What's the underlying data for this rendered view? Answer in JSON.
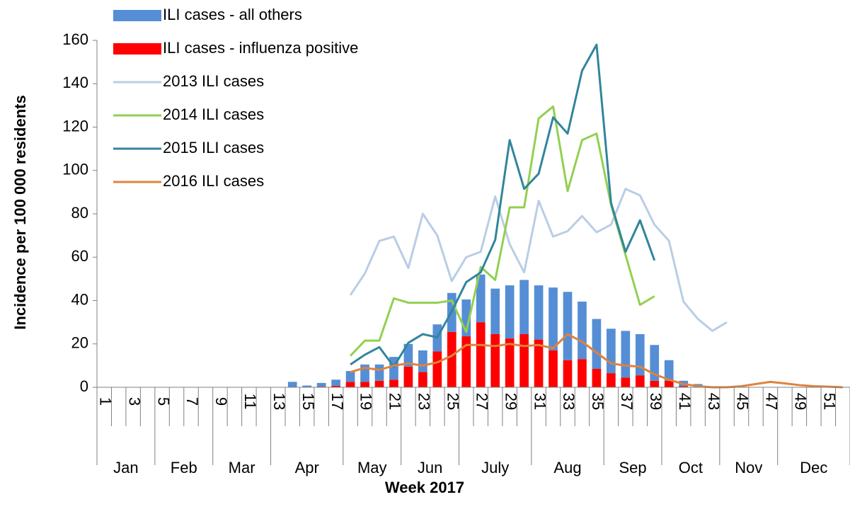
{
  "chart_data": {
    "type": "combo",
    "ylabel": "Incidence per 100 000 residents",
    "xlabel": "Week 2017",
    "categories": [
      "1",
      null,
      "3",
      null,
      "5",
      null,
      "7",
      null,
      "9",
      null,
      "11",
      null,
      "13",
      null,
      "15",
      null,
      "17",
      null,
      "19",
      null,
      "21",
      null,
      "23",
      null,
      "25",
      null,
      "27",
      null,
      "29",
      null,
      "31",
      null,
      "33",
      null,
      "35",
      null,
      "37",
      null,
      "39",
      null,
      "41",
      null,
      "43",
      null,
      "45",
      null,
      "47",
      null,
      "49",
      null,
      "51",
      null
    ],
    "months": [
      {
        "label": "Jan",
        "weeks": 4
      },
      {
        "label": "Feb",
        "weeks": 4
      },
      {
        "label": "Mar",
        "weeks": 4
      },
      {
        "label": "Apr",
        "weeks": 5
      },
      {
        "label": "May",
        "weeks": 4
      },
      {
        "label": "Jun",
        "weeks": 4
      },
      {
        "label": "July",
        "weeks": 5
      },
      {
        "label": "Aug",
        "weeks": 5
      },
      {
        "label": "Sep",
        "weeks": 4
      },
      {
        "label": "Oct",
        "weeks": 4
      },
      {
        "label": "Nov",
        "weeks": 4
      },
      {
        "label": "Dec",
        "weeks": 5
      }
    ],
    "series": [
      {
        "name": "ILI cases - all others",
        "type": "bar",
        "color": "#558ed5",
        "values": [
          null,
          null,
          null,
          null,
          null,
          null,
          null,
          null,
          null,
          null,
          null,
          null,
          null,
          2.5,
          0.8,
          1.7,
          2.8,
          5,
          8,
          7.5,
          10.5,
          10.5,
          10,
          12.5,
          18,
          17,
          22,
          21,
          24.5,
          25,
          25,
          29,
          31.5,
          26.5,
          23,
          20.5,
          21.5,
          19,
          16.5,
          9.5,
          2.5,
          1.5,
          null,
          null,
          null,
          null,
          null,
          null,
          null,
          null,
          null,
          null
        ]
      },
      {
        "name": "ILI cases - influenza positive",
        "type": "bar",
        "color": "#ff0000",
        "values": [
          null,
          null,
          null,
          null,
          null,
          null,
          null,
          null,
          null,
          null,
          null,
          null,
          null,
          0,
          0,
          0.3,
          0.7,
          2.5,
          2.5,
          3,
          3.5,
          9.5,
          7,
          16.5,
          25.5,
          23.5,
          30,
          24.5,
          22.5,
          24.5,
          22,
          17,
          12.5,
          13,
          8.5,
          6.5,
          4.5,
          5.5,
          3,
          3,
          0.5,
          0,
          null,
          null,
          null,
          null,
          null,
          null,
          null,
          null,
          null,
          null
        ]
      },
      {
        "name": "2013 ILI cases",
        "type": "line",
        "color": "#b9cde5",
        "values": [
          null,
          null,
          null,
          null,
          null,
          null,
          null,
          null,
          null,
          null,
          null,
          null,
          null,
          null,
          null,
          null,
          null,
          42.5,
          52.5,
          67.5,
          69.5,
          55,
          80,
          70,
          49,
          60,
          62.5,
          88,
          66,
          53,
          86,
          69.5,
          72,
          79,
          71.5,
          75,
          91.5,
          88.5,
          75,
          67.5,
          39.5,
          31.5,
          26,
          30,
          null,
          null,
          null,
          null,
          null,
          null,
          null,
          null
        ]
      },
      {
        "name": "2014 ILI cases",
        "type": "line",
        "color": "#92d050",
        "values": [
          null,
          null,
          null,
          null,
          null,
          null,
          null,
          null,
          null,
          null,
          null,
          null,
          null,
          null,
          null,
          null,
          null,
          14.5,
          21.5,
          21.5,
          41,
          39,
          39,
          39,
          40,
          25.5,
          55.5,
          49.5,
          83,
          83,
          124,
          129.5,
          90.5,
          114,
          117,
          84,
          61,
          38,
          42,
          null,
          null,
          null,
          null,
          null,
          null,
          null,
          null,
          null,
          null,
          null,
          null,
          null
        ]
      },
      {
        "name": "2015 ILI cases",
        "type": "line",
        "color": "#31859c",
        "values": [
          null,
          null,
          null,
          null,
          null,
          null,
          null,
          null,
          null,
          null,
          null,
          null,
          null,
          null,
          null,
          null,
          null,
          10.5,
          15,
          18.5,
          9.5,
          20.5,
          24.5,
          23,
          35,
          48.5,
          53,
          68,
          114,
          91.5,
          98.5,
          124.5,
          117,
          146,
          158,
          85,
          62.5,
          77,
          58.5,
          null,
          null,
          null,
          null,
          null,
          null,
          null,
          null,
          null,
          null,
          null,
          null,
          null
        ]
      },
      {
        "name": "2016 ILI cases",
        "type": "line",
        "color": "#e0823c",
        "values": [
          null,
          null,
          null,
          null,
          null,
          null,
          null,
          null,
          null,
          null,
          null,
          null,
          null,
          null,
          null,
          null,
          null,
          7,
          9,
          8,
          10,
          11,
          10,
          11.5,
          14.5,
          19.5,
          19.5,
          19,
          20,
          19,
          19.5,
          18,
          24.5,
          21,
          16,
          11,
          10,
          9.5,
          6,
          3.5,
          1.5,
          0.5,
          0,
          0,
          0.5,
          1.5,
          2.5,
          1.8,
          1,
          0.5,
          0.3,
          0
        ]
      }
    ],
    "ylim": [
      0,
      160
    ],
    "yticks": [
      0,
      20,
      40,
      60,
      80,
      100,
      120,
      140,
      160
    ],
    "legend": "upper left"
  }
}
